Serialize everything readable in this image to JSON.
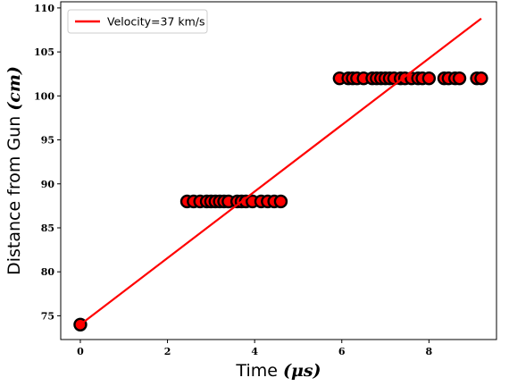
{
  "chart_data": {
    "type": "scatter",
    "xlabel": "Time ($\\mu s$)",
    "xlabel_parts": {
      "text": "Time ",
      "math": "(μs)"
    },
    "ylabel": "Distance from Gun ($cm$)",
    "ylabel_parts": {
      "text": "Distance from Gun ",
      "math": "(cm)"
    },
    "xlim": [
      -0.45,
      9.55
    ],
    "ylim": [
      72.3,
      110.7
    ],
    "x_ticks": [
      0,
      2,
      4,
      6,
      8
    ],
    "y_ticks": [
      75,
      80,
      85,
      90,
      95,
      100,
      105,
      110
    ],
    "grid": false,
    "legend": {
      "placement": "top-left",
      "entries": [
        {
          "label": "Velocity=37 km/s",
          "color": "#ff0000"
        }
      ]
    },
    "series": [
      {
        "kind": "scatter",
        "marker_face": "#ff0000",
        "marker_edge": "#000000",
        "points": [
          {
            "x": 0.0,
            "y": 74
          },
          {
            "x": 2.45,
            "y": 88
          },
          {
            "x": 2.6,
            "y": 88
          },
          {
            "x": 2.75,
            "y": 88
          },
          {
            "x": 2.9,
            "y": 88
          },
          {
            "x": 3.0,
            "y": 88
          },
          {
            "x": 3.1,
            "y": 88
          },
          {
            "x": 3.2,
            "y": 88
          },
          {
            "x": 3.3,
            "y": 88
          },
          {
            "x": 3.4,
            "y": 88
          },
          {
            "x": 3.6,
            "y": 88
          },
          {
            "x": 3.7,
            "y": 88
          },
          {
            "x": 3.8,
            "y": 88
          },
          {
            "x": 3.95,
            "y": 88
          },
          {
            "x": 4.15,
            "y": 88
          },
          {
            "x": 4.3,
            "y": 88
          },
          {
            "x": 4.45,
            "y": 88
          },
          {
            "x": 4.6,
            "y": 88
          },
          {
            "x": 5.95,
            "y": 102
          },
          {
            "x": 6.15,
            "y": 102
          },
          {
            "x": 6.25,
            "y": 102
          },
          {
            "x": 6.35,
            "y": 102
          },
          {
            "x": 6.5,
            "y": 102
          },
          {
            "x": 6.7,
            "y": 102
          },
          {
            "x": 6.8,
            "y": 102
          },
          {
            "x": 6.9,
            "y": 102
          },
          {
            "x": 7.0,
            "y": 102
          },
          {
            "x": 7.1,
            "y": 102
          },
          {
            "x": 7.2,
            "y": 102
          },
          {
            "x": 7.35,
            "y": 102
          },
          {
            "x": 7.45,
            "y": 102
          },
          {
            "x": 7.6,
            "y": 102
          },
          {
            "x": 7.75,
            "y": 102
          },
          {
            "x": 7.85,
            "y": 102
          },
          {
            "x": 8.0,
            "y": 102
          },
          {
            "x": 8.35,
            "y": 102
          },
          {
            "x": 8.45,
            "y": 102
          },
          {
            "x": 8.6,
            "y": 102
          },
          {
            "x": 8.7,
            "y": 102
          },
          {
            "x": 9.1,
            "y": 102
          },
          {
            "x": 9.2,
            "y": 102
          }
        ]
      },
      {
        "name": "Velocity=37 km/s",
        "kind": "line",
        "color": "#ff0000",
        "points": [
          {
            "x": 0.0,
            "y": 74
          },
          {
            "x": 9.2,
            "y": 108.8
          }
        ]
      }
    ]
  }
}
